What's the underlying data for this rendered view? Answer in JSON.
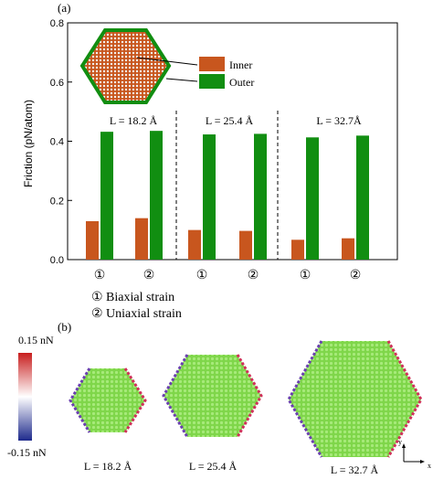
{
  "panel_a": {
    "label": "(a)"
  },
  "panel_b": {
    "label": "(b)"
  },
  "chart_data": {
    "type": "bar",
    "ylabel": "Friction (pN/atom)",
    "ylim": [
      0.0,
      0.8
    ],
    "yticks": [
      "0.0",
      "0.2",
      "0.4",
      "0.6",
      "0.8"
    ],
    "categories": [
      "①",
      "②",
      "①",
      "②",
      "①",
      "②"
    ],
    "series": [
      {
        "name": "Inner",
        "color": "#c8561e",
        "values": [
          0.13,
          0.14,
          0.1,
          0.097,
          0.067,
          0.072
        ]
      },
      {
        "name": "Outer",
        "color": "#118e11",
        "values": [
          0.432,
          0.435,
          0.423,
          0.425,
          0.413,
          0.419
        ]
      }
    ],
    "group_labels": [
      "L = 18.2 Å",
      "L = 25.4 Å",
      "L = 32.7Å"
    ],
    "legend_position": "top-center",
    "grid": false,
    "strain_legend": [
      "① Biaxial strain",
      "② Uniaxial strain"
    ]
  },
  "colorbar": {
    "max_label": "0.15 nN",
    "min_label": "-0.15 nN",
    "colors": [
      "#c81e1e",
      "#ffffff",
      "#1e2a8c"
    ]
  },
  "flakes": {
    "labels": [
      "L = 18.2 Å",
      "L = 25.4 Å",
      "L = 32.7 Å"
    ],
    "fill_color": "#7fd64a",
    "axis_labels": {
      "x": "x",
      "y": "y"
    }
  }
}
